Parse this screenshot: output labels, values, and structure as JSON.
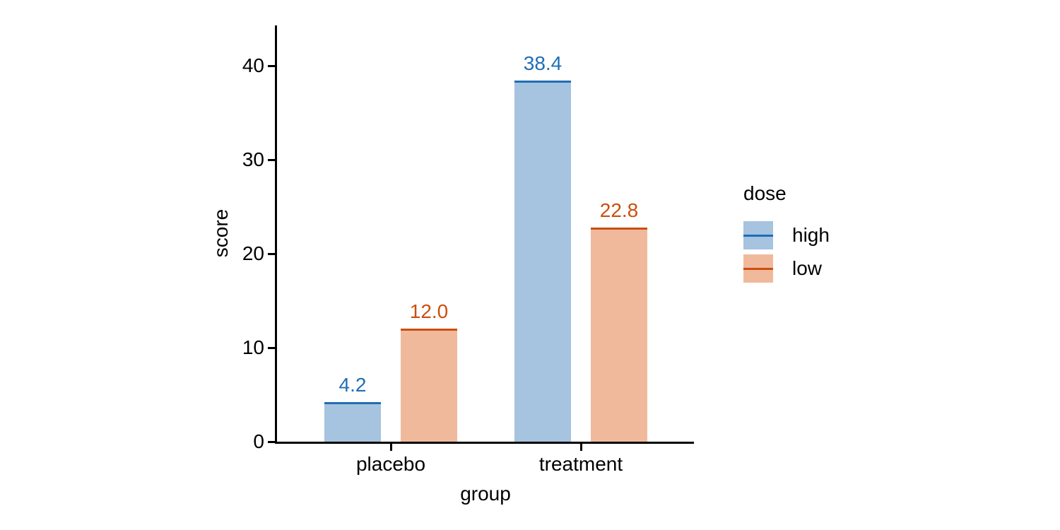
{
  "chart_data": {
    "type": "bar",
    "title": "",
    "xlabel": "group",
    "ylabel": "score",
    "categories": [
      "placebo",
      "treatment"
    ],
    "series": [
      {
        "name": "high",
        "values": [
          4.2,
          38.4
        ],
        "value_labels": [
          "4.2",
          "38.4"
        ],
        "fill_color": "#a6c3df",
        "edge_color": "#1f6eb4"
      },
      {
        "name": "low",
        "values": [
          12.0,
          22.8
        ],
        "value_labels": [
          "12.0",
          "22.8"
        ],
        "fill_color": "#f0b99c",
        "edge_color": "#cb4f0e"
      }
    ],
    "ylim": [
      0,
      44.3
    ],
    "yticks": [
      0,
      10,
      20,
      30,
      40
    ],
    "grid": false,
    "legend": {
      "title": "dose",
      "entries": [
        "high",
        "low"
      ],
      "position": "right"
    },
    "colors": {
      "axis": "#000000",
      "text": "#000000",
      "background": "#ffffff"
    }
  }
}
